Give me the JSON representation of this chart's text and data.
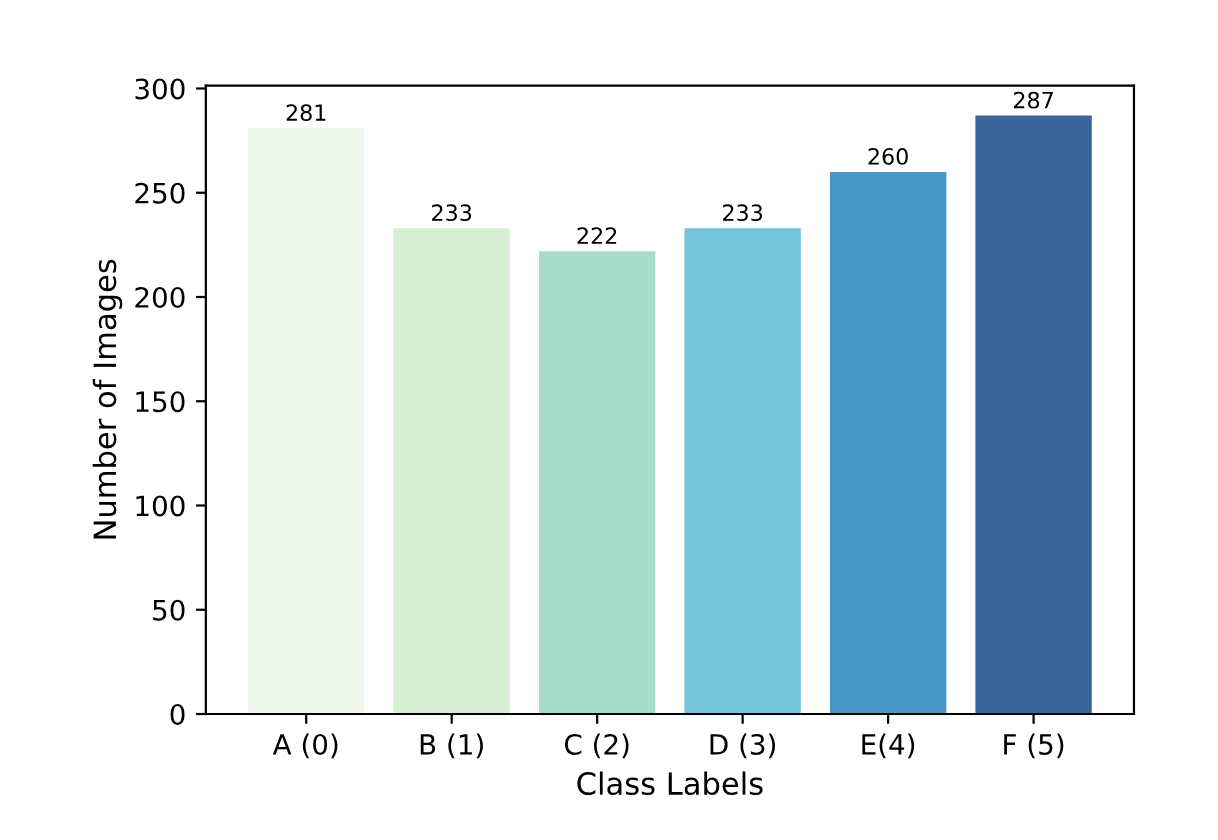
{
  "chart_data": {
    "type": "bar",
    "xlabel": "Class Labels",
    "ylabel": "Number of Images",
    "categories": [
      "A (0)",
      "B (1)",
      "C (2)",
      "D (3)",
      "E(4)",
      "F (5)"
    ],
    "values": [
      281,
      233,
      222,
      233,
      260,
      287
    ],
    "colors": [
      "#f0f9ec",
      "#d6efd3",
      "#a8dcca",
      "#74c3d9",
      "#4795c4",
      "#3a6699"
    ],
    "ylim": [
      0,
      301.35
    ],
    "yticks": [
      0,
      50,
      100,
      150,
      200,
      250,
      300
    ],
    "data_labels": true,
    "grid": false,
    "legend": false
  }
}
